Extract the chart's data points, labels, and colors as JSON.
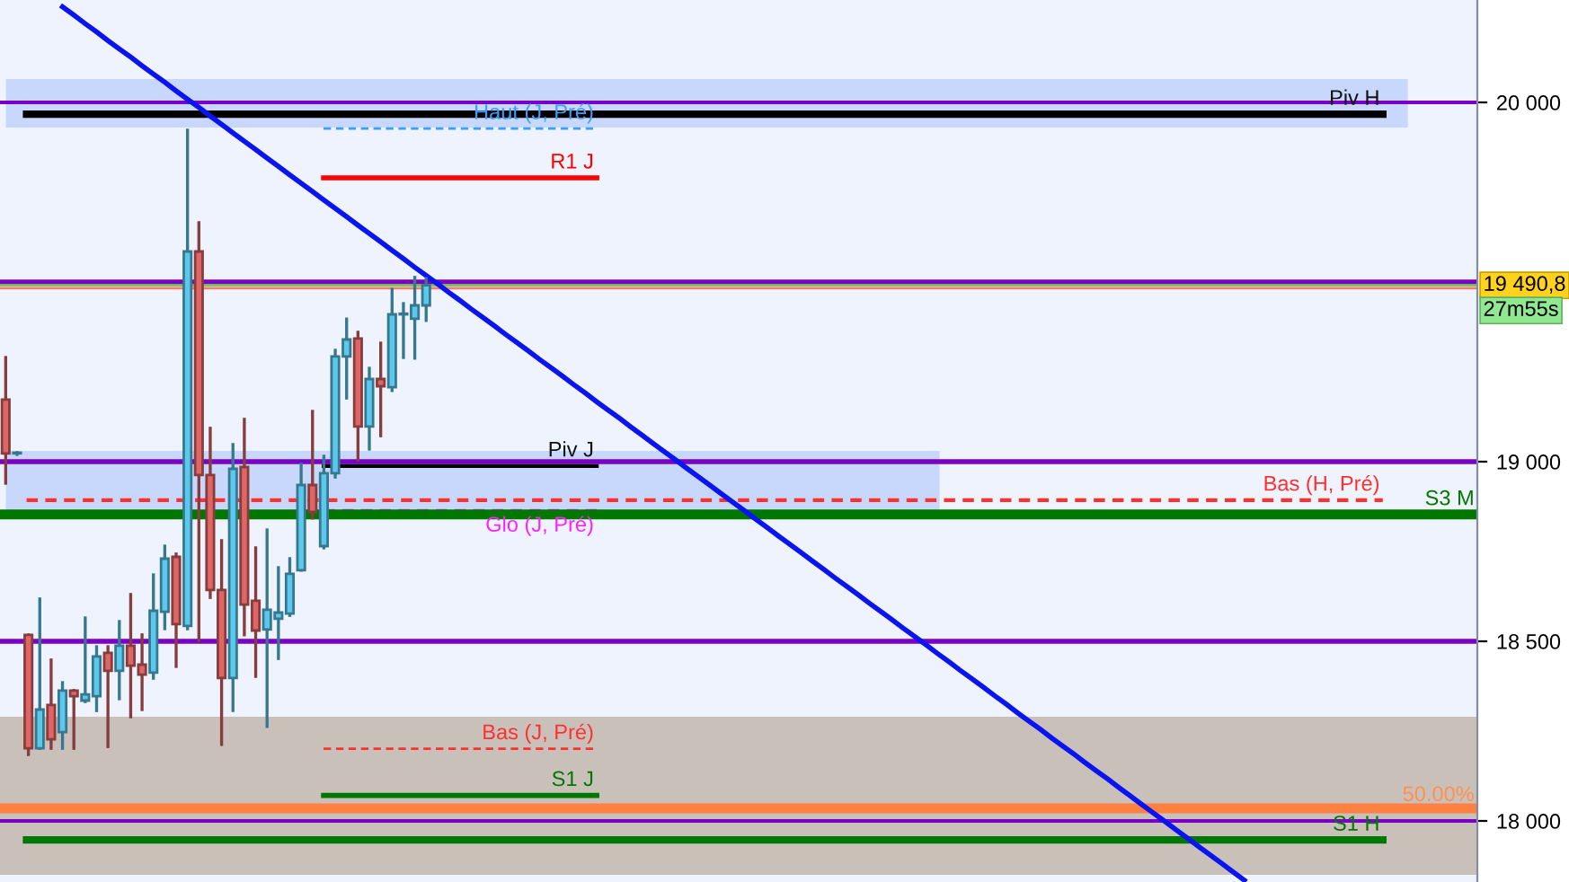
{
  "chart_data": {
    "type": "candlestick",
    "categories": [
      null,
      null,
      null,
      null,
      null,
      null,
      null,
      null,
      null,
      null,
      null,
      null,
      null,
      null,
      null,
      null,
      null,
      null,
      null,
      null,
      null,
      null,
      null,
      null,
      null,
      null,
      null,
      null,
      null,
      null,
      null,
      null,
      null,
      null,
      null,
      null,
      null,
      null,
      null,
      null,
      null,
      null,
      null,
      null,
      null,
      null,
      null,
      null,
      null,
      null,
      null,
      null,
      null,
      null,
      null,
      null,
      null,
      null,
      null,
      null,
      null,
      null,
      null,
      null,
      null,
      null,
      null,
      null,
      null,
      null,
      null,
      null,
      null,
      null,
      null,
      null,
      null,
      null,
      null,
      null,
      null,
      null,
      null,
      null,
      null,
      null,
      null,
      null,
      null,
      null,
      null,
      null,
      null,
      null,
      null,
      null,
      null,
      null,
      null,
      null,
      null,
      null,
      null,
      null,
      null,
      null,
      null,
      null,
      null,
      null,
      null,
      null,
      null,
      null,
      null,
      null,
      null,
      null,
      null,
      null,
      null,
      null,
      null,
      null,
      null,
      null,
      null,
      null,
      null,
      null
    ],
    "ohlc": [
      [
        19173,
        19290,
        18940,
        19023
      ],
      [
        19023,
        19025,
        19020,
        19023
      ],
      [
        18518,
        18518,
        18185,
        18202
      ],
      [
        18202,
        18618,
        18202,
        18310
      ],
      [
        18323,
        18448,
        18202,
        18227
      ],
      [
        18247,
        18385,
        18202,
        18363
      ],
      [
        18363,
        18363,
        18202,
        18347
      ],
      [
        18335,
        18565,
        18332,
        18352
      ],
      [
        18347,
        18485,
        18307,
        18458
      ],
      [
        18468,
        18485,
        18207,
        18418
      ],
      [
        18418,
        18555,
        18340,
        18488
      ],
      [
        18488,
        18630,
        18290,
        18432
      ],
      [
        18435,
        18518,
        18310,
        18407
      ],
      [
        18413,
        18685,
        18397,
        18585
      ],
      [
        18582,
        18765,
        18535,
        18730
      ],
      [
        18735,
        18743,
        18430,
        18548
      ],
      [
        18543,
        19923,
        18535,
        19585
      ],
      [
        19585,
        19665,
        18502,
        18963
      ],
      [
        18963,
        19093,
        18622,
        18643
      ],
      [
        18643,
        18780,
        18213,
        18398
      ],
      [
        18398,
        19048,
        18307,
        18980
      ],
      [
        18985,
        19118,
        18518,
        18602
      ],
      [
        18613,
        18760,
        18402,
        18530
      ],
      [
        18533,
        18810,
        18263,
        18588
      ],
      [
        18563,
        18705,
        18452,
        18580
      ],
      [
        18577,
        18730,
        18572,
        18688
      ],
      [
        18698,
        18993,
        18698,
        18935
      ],
      [
        18935,
        19140,
        18843,
        18860
      ],
      [
        18765,
        19015,
        18760,
        18968
      ],
      [
        18968,
        19310,
        18957,
        19293
      ],
      [
        19293,
        19397,
        19177,
        19340
      ],
      [
        19343,
        19360,
        19005,
        19098
      ],
      [
        19098,
        19260,
        19035,
        19230
      ],
      [
        19230,
        19330,
        19072,
        19210
      ],
      [
        19207,
        19480,
        19198,
        19410
      ],
      [
        19410,
        19440,
        19290,
        19410
      ],
      [
        19398,
        19513,
        19288,
        19435
      ],
      [
        19435,
        19510,
        19393,
        19490.8
      ],
      null,
      null,
      null,
      null,
      null,
      null,
      null,
      null,
      null,
      null,
      null,
      null,
      null,
      null,
      null,
      null,
      null,
      null,
      null,
      null,
      null,
      null,
      null,
      null,
      null,
      null,
      null,
      null,
      null,
      null,
      null,
      null,
      null,
      null,
      null,
      null,
      null,
      null,
      null,
      null,
      null,
      null,
      null,
      null,
      null,
      null,
      null,
      null,
      null,
      null,
      null,
      null,
      null,
      null,
      null,
      null,
      null,
      null,
      null,
      null,
      null,
      null,
      null,
      null,
      null,
      null,
      null,
      null,
      null,
      null,
      null,
      null,
      null,
      null,
      null,
      null,
      null,
      null,
      null,
      null,
      null,
      null,
      null,
      null,
      null,
      null,
      null,
      null,
      null,
      null,
      null,
      null
    ],
    "colors": [
      "#e06666",
      "#5bc8ee",
      "#e06666",
      "#5bc8ee",
      "#e06666",
      "#5bc8ee",
      "#e06666",
      "#5bc8ee",
      "#5bc8ee",
      "#e06666",
      "#5bc8ee",
      "#e06666",
      "#e06666",
      "#5bc8ee",
      "#5bc8ee",
      "#e06666",
      "#5bc8ee",
      "#e06666",
      "#e06666",
      "#e06666",
      "#5bc8ee",
      "#e06666",
      "#e06666",
      "#5bc8ee",
      "#5bc8ee",
      "#5bc8ee",
      "#5bc8ee",
      "#e06666",
      "#5bc8ee",
      "#5bc8ee",
      "#5bc8ee",
      "#e06666",
      "#5bc8ee",
      "#e06666",
      "#5bc8ee",
      "#5bc8ee",
      "#5bc8ee",
      "#5bc8ee",
      null,
      null,
      null,
      null,
      null,
      null,
      null,
      null,
      null,
      null,
      null,
      null,
      null,
      null,
      null,
      null,
      null,
      null,
      null,
      null,
      null,
      null,
      null,
      null,
      null,
      null,
      null,
      null,
      null,
      null,
      null,
      null,
      null,
      null,
      null,
      null,
      null,
      null,
      null,
      null,
      null,
      null,
      null,
      null,
      null,
      null,
      null,
      null,
      null,
      null,
      null,
      null,
      null,
      null,
      null,
      null,
      null,
      null,
      null,
      null,
      null,
      null,
      null,
      null,
      null,
      null,
      null,
      null,
      null,
      null,
      null,
      null,
      null,
      null,
      null,
      null,
      null,
      null,
      null,
      null,
      null,
      null,
      null,
      null,
      null,
      null,
      null,
      null,
      null,
      null,
      null,
      null
    ],
    "series": [
      {
        "type": "line",
        "color": "#0a14f0",
        "values": [
          null,
          null,
          null,
          null,
          null,
          20266,
          20243,
          20219,
          20196,
          20172,
          20149,
          20126,
          20102,
          20079,
          20056,
          20032,
          20009,
          19986,
          19962,
          19939,
          19915,
          19892,
          19869,
          19845,
          19822,
          19798,
          19775,
          19752,
          19728,
          19705,
          19682,
          19658,
          19635,
          19612,
          19588,
          19565,
          19541,
          19518,
          19495,
          19471,
          19448,
          19424,
          19401,
          19378,
          19354,
          19331,
          19308,
          19284,
          19261,
          19238,
          19214,
          19191,
          19167,
          19144,
          19121,
          19097,
          19074,
          19050,
          19027,
          19004,
          18980,
          18957,
          18934,
          18910,
          18887,
          18864,
          18840,
          18817,
          18793,
          18770,
          18747,
          18723,
          18700,
          18676,
          18653,
          18630,
          18606,
          18583,
          18560,
          18536,
          18513,
          18490,
          18466,
          18443,
          18419,
          18396,
          18373,
          18349,
          18326,
          18302,
          18279,
          18256,
          18232,
          18209,
          18186,
          18162,
          18139,
          18116,
          18092,
          18069,
          18045,
          18022,
          17999,
          17975,
          17952,
          17928,
          17905,
          17882,
          17858,
          17835,
          null,
          null,
          null,
          null,
          null,
          null,
          null,
          null,
          null,
          null,
          null,
          null,
          null,
          null,
          null,
          null,
          null,
          null,
          null,
          null
        ]
      }
    ],
    "ylim": [
      17830,
      20285
    ],
    "yticks": [
      {
        "value": 18000,
        "label": "18 000"
      },
      {
        "value": 18500,
        "label": "18 500"
      },
      {
        "value": 19000,
        "label": "19 000"
      },
      {
        "value": 20000,
        "label": "20 000"
      }
    ],
    "tick_labels": "y",
    "ref_lines": [
      {
        "axis": "y",
        "value": 20000,
        "color": "#7a00c8"
      },
      {
        "axis": "y",
        "value": 19967,
        "label": "Piv H",
        "color": "#000000"
      },
      {
        "axis": "y",
        "value": 19927,
        "label": "Haut (J, Pré)",
        "color": "#3aa0ff",
        "line_style": "dashed"
      },
      {
        "axis": "y",
        "value": 19790,
        "label": "R1 J",
        "color": "#ff0000"
      },
      {
        "axis": "y",
        "value": 19500,
        "color": "#7a00c8"
      },
      {
        "axis": "y",
        "value": 19490.8,
        "label": "19 490,8",
        "color": "#78c850"
      },
      {
        "axis": "y",
        "value": 19483,
        "color": "#f08070"
      },
      {
        "axis": "y",
        "value": 19000,
        "color": "#7a00c8"
      },
      {
        "axis": "y",
        "value": 18988,
        "label": "Piv J",
        "color": "#000000"
      },
      {
        "axis": "y",
        "value": 18893,
        "label": "Bas (H, Pré)",
        "color": "#ff3030",
        "line_style": "dashed"
      },
      {
        "axis": "y",
        "value": 18863,
        "label": "Glo (J, Pré)",
        "color": "#ff20ff",
        "line_style": "dashed"
      },
      {
        "axis": "y",
        "value": 18853,
        "label": "S3 M",
        "color": "#007800"
      },
      {
        "axis": "y",
        "value": 18500,
        "color": "#7a00c8"
      },
      {
        "axis": "y",
        "value": 18201,
        "label": "Bas (J, Pré)",
        "color": "#ff3030",
        "line_style": "dashed"
      },
      {
        "axis": "y",
        "value": 18071,
        "label": "S1 J",
        "color": "#007800"
      },
      {
        "axis": "y",
        "value": 18035,
        "color": "#ff8040"
      },
      {
        "axis": "y",
        "value": 18000,
        "color": "#7a00c8"
      },
      {
        "axis": "y",
        "value": 17947,
        "label": "S1 H",
        "color": "#007800"
      }
    ],
    "bands": [
      {
        "axis": "y",
        "from": 19930,
        "to": 20065,
        "color": "#c8d8fc"
      },
      {
        "axis": "y",
        "from": 18865,
        "to": 19030,
        "color": "#c8d8fc"
      },
      {
        "axis": "y",
        "from": 17850,
        "to": 18290,
        "color": "#c9c0ba"
      }
    ],
    "annotations": [
      {
        "text": "50.00%",
        "y": 18035
      },
      "27m55s"
    ]
  }
}
